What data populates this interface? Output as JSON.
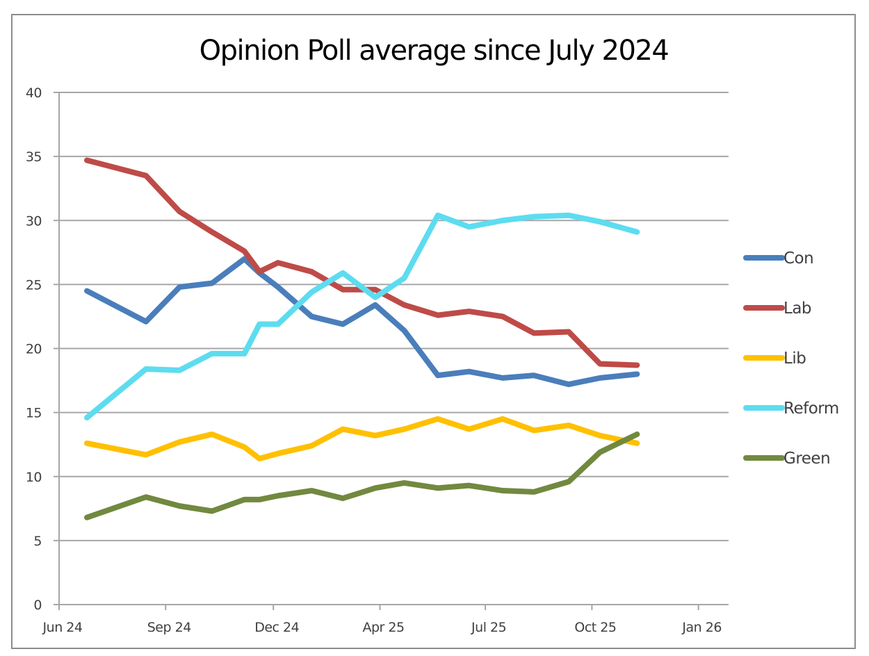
{
  "chart_data": {
    "type": "line",
    "title": "Opinion Poll average since July 2024",
    "xlabel": "",
    "ylabel": "",
    "ylim": [
      0,
      40
    ],
    "yticks": [
      0,
      5,
      10,
      15,
      20,
      25,
      30,
      35,
      40
    ],
    "x_axis_unit": "days since 1 Jun 2024",
    "xlim": [
      0,
      578
    ],
    "xticks": [
      {
        "label": "Jun 24",
        "day": 0
      },
      {
        "label": "Sep 24",
        "day": 92
      },
      {
        "label": "Dec 24",
        "day": 185
      },
      {
        "label": "Apr 25",
        "day": 277
      },
      {
        "label": "Jul 25",
        "day": 368
      },
      {
        "label": "Oct 25",
        "day": 460
      },
      {
        "label": "Jan 26",
        "day": 552
      }
    ],
    "grid": true,
    "legend_position": "right",
    "x": [
      24,
      75,
      104,
      132,
      160,
      173,
      189,
      218,
      245,
      273,
      298,
      327,
      354,
      383,
      410,
      440,
      467,
      499
    ],
    "series": [
      {
        "name": "Con",
        "color": "#4a7ebb",
        "values": [
          24.5,
          22.1,
          24.8,
          25.1,
          27.0,
          25.9,
          24.8,
          22.5,
          21.9,
          23.4,
          21.4,
          17.9,
          18.2,
          17.7,
          17.9,
          17.2,
          17.7,
          18.0
        ]
      },
      {
        "name": "Lab",
        "color": "#be4b48",
        "values": [
          34.7,
          33.5,
          30.7,
          29.1,
          27.6,
          26.0,
          26.7,
          26.0,
          24.6,
          24.6,
          23.4,
          22.6,
          22.9,
          22.5,
          21.2,
          21.3,
          18.8,
          18.7
        ]
      },
      {
        "name": "Lib",
        "color": "#ffc000",
        "values": [
          12.6,
          11.7,
          12.7,
          13.3,
          12.3,
          11.4,
          11.8,
          12.4,
          13.7,
          13.2,
          13.7,
          14.5,
          13.7,
          14.5,
          13.6,
          14.0,
          13.2,
          12.6
        ]
      },
      {
        "name": "Reform",
        "color": "#5ddcf0",
        "values": [
          14.6,
          18.4,
          18.3,
          19.6,
          19.6,
          21.9,
          21.9,
          24.4,
          25.9,
          24.0,
          25.5,
          30.4,
          29.5,
          30.0,
          30.3,
          30.4,
          29.9,
          29.1
        ]
      },
      {
        "name": "Green",
        "color": "#71893f",
        "values": [
          6.8,
          8.4,
          7.7,
          7.3,
          8.2,
          8.2,
          8.5,
          8.9,
          8.3,
          9.1,
          9.5,
          9.1,
          9.3,
          8.9,
          8.8,
          9.6,
          11.9,
          13.3
        ]
      }
    ]
  }
}
